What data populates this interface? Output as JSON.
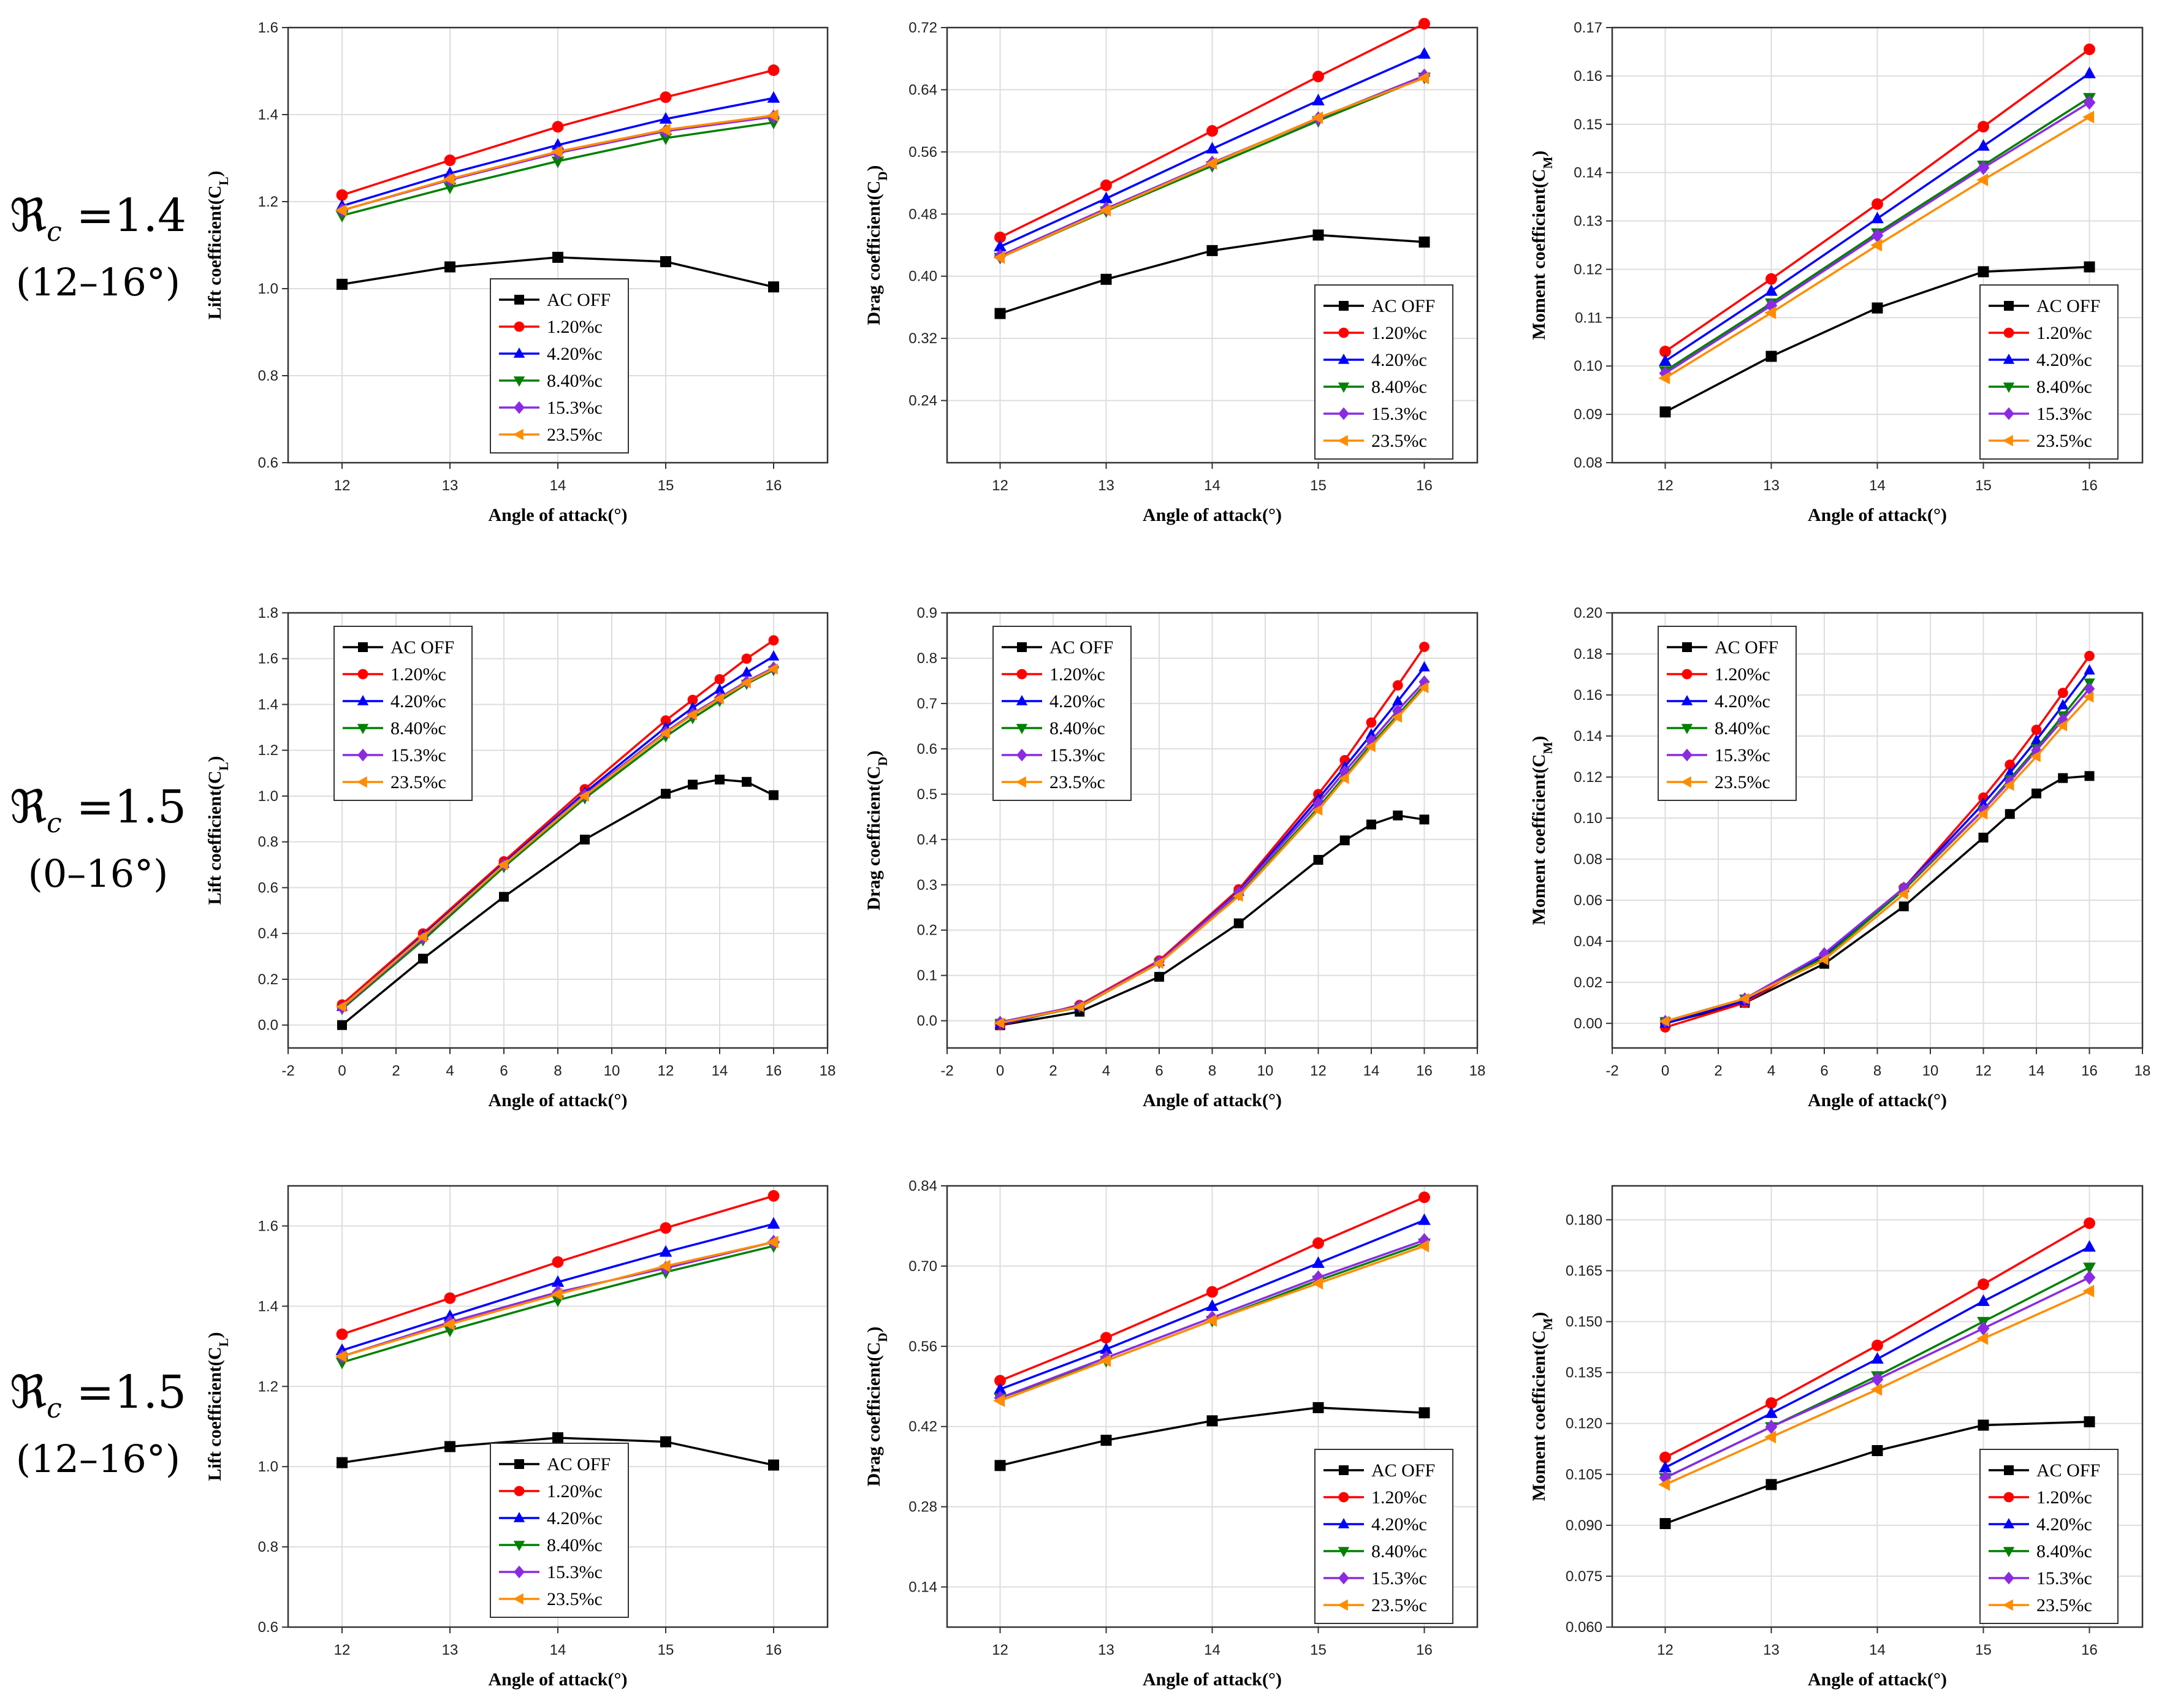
{
  "figure": {
    "x_label": "Angle of attack(°)",
    "row_labels": [
      {
        "symbol": "ℜ",
        "sub": "c",
        "value": "=1.4",
        "range": "(12–16°)"
      },
      {
        "symbol": "ℜ",
        "sub": "c",
        "value": "=1.5",
        "range": "(0–16°)"
      },
      {
        "symbol": "ℜ",
        "sub": "c",
        "value": "=1.5",
        "range": "(12–16°)"
      }
    ],
    "series_styles": [
      {
        "name": "AC OFF",
        "color": "#000000",
        "marker": "square"
      },
      {
        "name": "1.20%c",
        "color": "#ff0000",
        "marker": "circle"
      },
      {
        "name": "4.20%c",
        "color": "#0000ff",
        "marker": "triangle-up"
      },
      {
        "name": "8.40%c",
        "color": "#008000",
        "marker": "triangle-down"
      },
      {
        "name": "15.3%c",
        "color": "#8a2be2",
        "marker": "diamond"
      },
      {
        "name": "23.5%c",
        "color": "#ff8c00",
        "marker": "triangle-left"
      }
    ]
  },
  "chart_data": [
    {
      "type": "line",
      "row": 0,
      "col": 0,
      "ylabel": "Lift coefficient(C_L)",
      "xlabel": "Angle of attack(°)",
      "xlim": [
        11.5,
        16.5
      ],
      "ylim": [
        0.6,
        1.6
      ],
      "xticks": [
        12,
        13,
        14,
        15,
        16
      ],
      "yticks": [
        0.6,
        0.8,
        1.0,
        1.2,
        1.4,
        1.6
      ],
      "xdecimals": 0,
      "ydecimals": 1,
      "legend": "bottom-center",
      "x": [
        12,
        13,
        14,
        15,
        16
      ],
      "series": [
        {
          "name": "AC OFF",
          "values": [
            1.01,
            1.05,
            1.072,
            1.062,
            1.004
          ]
        },
        {
          "name": "1.20%c",
          "values": [
            1.215,
            1.295,
            1.372,
            1.44,
            1.502
          ]
        },
        {
          "name": "4.20%c",
          "values": [
            1.19,
            1.265,
            1.33,
            1.39,
            1.438
          ]
        },
        {
          "name": "8.40%c",
          "values": [
            1.168,
            1.233,
            1.293,
            1.346,
            1.382
          ]
        },
        {
          "name": "15.3%c",
          "values": [
            1.18,
            1.25,
            1.312,
            1.362,
            1.395
          ]
        },
        {
          "name": "23.5%c",
          "values": [
            1.18,
            1.252,
            1.315,
            1.365,
            1.398
          ]
        }
      ]
    },
    {
      "type": "line",
      "row": 0,
      "col": 1,
      "ylabel": "Drag coefficient(C_D)",
      "xlabel": "Angle of attack(°)",
      "xlim": [
        11.5,
        16.5
      ],
      "ylim": [
        0.16,
        0.72
      ],
      "xticks": [
        12,
        13,
        14,
        15,
        16
      ],
      "yticks": [
        0.24,
        0.32,
        0.4,
        0.48,
        0.56,
        0.64,
        0.72
      ],
      "xdecimals": 0,
      "ydecimals": 2,
      "legend": "bottom-right",
      "x": [
        12,
        13,
        14,
        15,
        16
      ],
      "series": [
        {
          "name": "AC OFF",
          "values": [
            0.352,
            0.396,
            0.433,
            0.453,
            0.444
          ]
        },
        {
          "name": "1.20%c",
          "values": [
            0.45,
            0.517,
            0.587,
            0.657,
            0.725
          ]
        },
        {
          "name": "4.20%c",
          "values": [
            0.438,
            0.5,
            0.564,
            0.626,
            0.686
          ]
        },
        {
          "name": "8.40%c",
          "values": [
            0.424,
            0.484,
            0.542,
            0.6,
            0.656
          ]
        },
        {
          "name": "15.3%c",
          "values": [
            0.426,
            0.487,
            0.546,
            0.603,
            0.658
          ]
        },
        {
          "name": "23.5%c",
          "values": [
            0.424,
            0.485,
            0.545,
            0.604,
            0.655
          ]
        }
      ]
    },
    {
      "type": "line",
      "row": 0,
      "col": 2,
      "ylabel": "Moment coefficient(C_M)",
      "xlabel": "Angle of attack(°)",
      "xlim": [
        11.5,
        16.5
      ],
      "ylim": [
        0.08,
        0.17
      ],
      "xticks": [
        12,
        13,
        14,
        15,
        16
      ],
      "yticks": [
        0.08,
        0.09,
        0.1,
        0.11,
        0.12,
        0.13,
        0.14,
        0.15,
        0.16,
        0.17
      ],
      "xdecimals": 0,
      "ydecimals": 2,
      "legend": "bottom-right",
      "x": [
        12,
        13,
        14,
        15,
        16
      ],
      "series": [
        {
          "name": "AC OFF",
          "values": [
            0.0905,
            0.102,
            0.112,
            0.1195,
            0.1205
          ]
        },
        {
          "name": "1.20%c",
          "values": [
            0.103,
            0.118,
            0.1335,
            0.1495,
            0.1655
          ]
        },
        {
          "name": "4.20%c",
          "values": [
            0.101,
            0.1155,
            0.1305,
            0.1455,
            0.1605
          ]
        },
        {
          "name": "8.40%c",
          "values": [
            0.099,
            0.113,
            0.1275,
            0.1415,
            0.1555
          ]
        },
        {
          "name": "15.3%c",
          "values": [
            0.0985,
            0.1125,
            0.127,
            0.141,
            0.1545
          ]
        },
        {
          "name": "23.5%c",
          "values": [
            0.0975,
            0.111,
            0.125,
            0.1385,
            0.1515
          ]
        }
      ]
    },
    {
      "type": "line",
      "row": 1,
      "col": 0,
      "ylabel": "Lift coefficient(C_L)",
      "xlabel": "Angle of attack(°)",
      "xlim": [
        -2,
        18
      ],
      "ylim": [
        -0.1,
        1.8
      ],
      "xticks": [
        -2,
        0,
        2,
        4,
        6,
        8,
        10,
        12,
        14,
        16,
        18
      ],
      "yticks": [
        0.0,
        0.2,
        0.4,
        0.6,
        0.8,
        1.0,
        1.2,
        1.4,
        1.6,
        1.8
      ],
      "xdecimals": 0,
      "ydecimals": 1,
      "legend": "top-left",
      "x": [
        0,
        3,
        6,
        9,
        12,
        13,
        14,
        15,
        16
      ],
      "series": [
        {
          "name": "AC OFF",
          "values": [
            0.0,
            0.29,
            0.56,
            0.81,
            1.01,
            1.05,
            1.072,
            1.062,
            1.004
          ]
        },
        {
          "name": "1.20%c",
          "values": [
            0.09,
            0.4,
            0.715,
            1.03,
            1.33,
            1.42,
            1.51,
            1.6,
            1.68
          ]
        },
        {
          "name": "4.20%c",
          "values": [
            0.08,
            0.39,
            0.705,
            1.015,
            1.3,
            1.385,
            1.465,
            1.54,
            1.61
          ]
        },
        {
          "name": "8.40%c",
          "values": [
            0.07,
            0.37,
            0.69,
            0.99,
            1.26,
            1.34,
            1.415,
            1.49,
            1.55
          ]
        },
        {
          "name": "15.3%c",
          "values": [
            0.075,
            0.38,
            0.7,
            1.005,
            1.28,
            1.36,
            1.43,
            1.5,
            1.56
          ]
        },
        {
          "name": "23.5%c",
          "values": [
            0.08,
            0.385,
            0.7,
            1.0,
            1.275,
            1.355,
            1.425,
            1.495,
            1.555
          ]
        }
      ]
    },
    {
      "type": "line",
      "row": 1,
      "col": 1,
      "ylabel": "Drag coefficient(C_D)",
      "xlabel": "Angle of attack(°)",
      "xlim": [
        -2,
        18
      ],
      "ylim": [
        -0.06,
        0.9
      ],
      "xticks": [
        -2,
        0,
        2,
        4,
        6,
        8,
        10,
        12,
        14,
        16,
        18
      ],
      "yticks": [
        0.0,
        0.1,
        0.2,
        0.3,
        0.4,
        0.5,
        0.6,
        0.7,
        0.8,
        0.9
      ],
      "xdecimals": 0,
      "ydecimals": 1,
      "legend": "top-left",
      "x": [
        0,
        3,
        6,
        9,
        12,
        13,
        14,
        15,
        16
      ],
      "series": [
        {
          "name": "AC OFF",
          "values": [
            -0.01,
            0.02,
            0.097,
            0.215,
            0.355,
            0.398,
            0.433,
            0.453,
            0.444
          ]
        },
        {
          "name": "1.20%c",
          "values": [
            -0.01,
            0.035,
            0.133,
            0.29,
            0.5,
            0.575,
            0.658,
            0.74,
            0.825
          ]
        },
        {
          "name": "4.20%c",
          "values": [
            -0.008,
            0.032,
            0.13,
            0.285,
            0.49,
            0.56,
            0.632,
            0.705,
            0.78
          ]
        },
        {
          "name": "8.40%c",
          "values": [
            -0.005,
            0.03,
            0.128,
            0.278,
            0.47,
            0.54,
            0.61,
            0.675,
            0.74
          ]
        },
        {
          "name": "15.3%c",
          "values": [
            -0.003,
            0.033,
            0.13,
            0.283,
            0.48,
            0.55,
            0.618,
            0.685,
            0.748
          ]
        },
        {
          "name": "23.5%c",
          "values": [
            -0.005,
            0.031,
            0.127,
            0.275,
            0.465,
            0.535,
            0.605,
            0.67,
            0.735
          ]
        }
      ]
    },
    {
      "type": "line",
      "row": 1,
      "col": 2,
      "ylabel": "Moment coefficient(C_M)",
      "xlabel": "Angle of attack(°)",
      "xlim": [
        -2,
        18
      ],
      "ylim": [
        -0.012,
        0.2
      ],
      "xticks": [
        -2,
        0,
        2,
        4,
        6,
        8,
        10,
        12,
        14,
        16,
        18
      ],
      "yticks": [
        0.0,
        0.02,
        0.04,
        0.06,
        0.08,
        0.1,
        0.12,
        0.14,
        0.16,
        0.18,
        0.2
      ],
      "xdecimals": 0,
      "ydecimals": 2,
      "legend": "top-left",
      "x": [
        0,
        3,
        6,
        9,
        12,
        13,
        14,
        15,
        16
      ],
      "series": [
        {
          "name": "AC OFF",
          "values": [
            0.0,
            0.01,
            0.029,
            0.057,
            0.0905,
            0.102,
            0.112,
            0.1195,
            0.1205
          ]
        },
        {
          "name": "1.20%c",
          "values": [
            -0.002,
            0.01,
            0.033,
            0.066,
            0.11,
            0.126,
            0.143,
            0.161,
            0.179
          ]
        },
        {
          "name": "4.20%c",
          "values": [
            0.0,
            0.011,
            0.033,
            0.066,
            0.107,
            0.122,
            0.138,
            0.155,
            0.172
          ]
        },
        {
          "name": "8.40%c",
          "values": [
            0.001,
            0.012,
            0.032,
            0.065,
            0.104,
            0.119,
            0.134,
            0.15,
            0.166
          ]
        },
        {
          "name": "15.3%c",
          "values": [
            0.001,
            0.012,
            0.034,
            0.066,
            0.104,
            0.118,
            0.133,
            0.148,
            0.163
          ]
        },
        {
          "name": "23.5%c",
          "values": [
            0.001,
            0.012,
            0.031,
            0.063,
            0.102,
            0.116,
            0.13,
            0.145,
            0.159
          ]
        }
      ]
    },
    {
      "type": "line",
      "row": 2,
      "col": 0,
      "ylabel": "Lift coefficient(C_L)",
      "xlabel": "Angle of attack(°)",
      "xlim": [
        11.5,
        16.5
      ],
      "ylim": [
        0.6,
        1.7
      ],
      "xticks": [
        12,
        13,
        14,
        15,
        16
      ],
      "yticks": [
        0.6,
        0.8,
        1.0,
        1.2,
        1.4,
        1.6
      ],
      "xdecimals": 0,
      "ydecimals": 1,
      "legend": "bottom-center",
      "x": [
        12,
        13,
        14,
        15,
        16
      ],
      "series": [
        {
          "name": "AC OFF",
          "values": [
            1.01,
            1.05,
            1.072,
            1.062,
            1.004
          ]
        },
        {
          "name": "1.20%c",
          "values": [
            1.33,
            1.42,
            1.51,
            1.595,
            1.675
          ]
        },
        {
          "name": "4.20%c",
          "values": [
            1.29,
            1.375,
            1.46,
            1.535,
            1.605
          ]
        },
        {
          "name": "8.40%c",
          "values": [
            1.26,
            1.34,
            1.415,
            1.485,
            1.55
          ]
        },
        {
          "name": "15.3%c",
          "values": [
            1.275,
            1.36,
            1.435,
            1.495,
            1.56
          ]
        },
        {
          "name": "23.5%c",
          "values": [
            1.275,
            1.355,
            1.43,
            1.5,
            1.56
          ]
        }
      ]
    },
    {
      "type": "line",
      "row": 2,
      "col": 1,
      "ylabel": "Drag coefficient(C_D)",
      "xlabel": "Angle of attack(°)",
      "xlim": [
        11.5,
        16.5
      ],
      "ylim": [
        0.07,
        0.84
      ],
      "xticks": [
        12,
        13,
        14,
        15,
        16
      ],
      "yticks": [
        0.14,
        0.28,
        0.42,
        0.56,
        0.7,
        0.84
      ],
      "xdecimals": 0,
      "ydecimals": 2,
      "legend": "bottom-right",
      "x": [
        12,
        13,
        14,
        15,
        16
      ],
      "series": [
        {
          "name": "AC OFF",
          "values": [
            0.352,
            0.396,
            0.43,
            0.453,
            0.444
          ]
        },
        {
          "name": "1.20%c",
          "values": [
            0.5,
            0.575,
            0.655,
            0.74,
            0.82
          ]
        },
        {
          "name": "4.20%c",
          "values": [
            0.485,
            0.555,
            0.63,
            0.705,
            0.78
          ]
        },
        {
          "name": "8.40%c",
          "values": [
            0.47,
            0.535,
            0.605,
            0.675,
            0.74
          ]
        },
        {
          "name": "15.3%c",
          "values": [
            0.47,
            0.54,
            0.61,
            0.68,
            0.745
          ]
        },
        {
          "name": "23.5%c",
          "values": [
            0.465,
            0.535,
            0.605,
            0.67,
            0.735
          ]
        }
      ]
    },
    {
      "type": "line",
      "row": 2,
      "col": 2,
      "ylabel": "Moment coefficient(C_M)",
      "xlabel": "Angle of attack(°)",
      "xlim": [
        11.5,
        16.5
      ],
      "ylim": [
        0.06,
        0.19
      ],
      "xticks": [
        12,
        13,
        14,
        15,
        16
      ],
      "yticks": [
        0.06,
        0.075,
        0.09,
        0.105,
        0.12,
        0.135,
        0.15,
        0.165,
        0.18
      ],
      "xdecimals": 0,
      "ydecimals": 3,
      "legend": "bottom-right",
      "x": [
        12,
        13,
        14,
        15,
        16
      ],
      "series": [
        {
          "name": "AC OFF",
          "values": [
            0.0905,
            0.102,
            0.112,
            0.1195,
            0.1205
          ]
        },
        {
          "name": "1.20%c",
          "values": [
            0.11,
            0.126,
            0.143,
            0.161,
            0.179
          ]
        },
        {
          "name": "4.20%c",
          "values": [
            0.107,
            0.123,
            0.139,
            0.156,
            0.172
          ]
        },
        {
          "name": "8.40%c",
          "values": [
            0.104,
            0.119,
            0.134,
            0.15,
            0.166
          ]
        },
        {
          "name": "15.3%c",
          "values": [
            0.104,
            0.119,
            0.133,
            0.148,
            0.163
          ]
        },
        {
          "name": "23.5%c",
          "values": [
            0.102,
            0.116,
            0.13,
            0.145,
            0.159
          ]
        }
      ]
    }
  ]
}
